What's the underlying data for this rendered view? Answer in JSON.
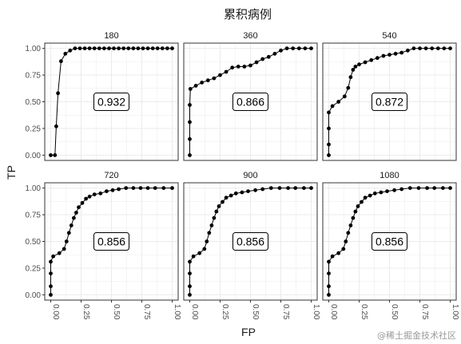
{
  "chart_data": {
    "type": "line",
    "title": "累积病例",
    "xlabel": "FP",
    "ylabel": "TP",
    "xlim": [
      0,
      1
    ],
    "ylim": [
      0,
      1
    ],
    "x_ticks": [
      "0.00",
      "0.25",
      "0.50",
      "0.75",
      "1.00"
    ],
    "y_ticks": [
      "0.00",
      "0.25",
      "0.50",
      "0.75",
      "1.00"
    ],
    "grid": true,
    "facets": [
      {
        "label": "180",
        "auc_label": "0.932",
        "x": [
          0,
          0.035,
          0.045,
          0.06,
          0.085,
          0.12,
          0.16,
          0.2,
          0.24,
          0.28,
          0.32,
          0.36,
          0.4,
          0.44,
          0.48,
          0.52,
          0.56,
          0.6,
          0.64,
          0.68,
          0.72,
          0.76,
          0.8,
          0.84,
          0.88,
          0.92,
          0.96,
          1.0
        ],
        "y": [
          0,
          0,
          0.27,
          0.58,
          0.88,
          0.95,
          0.98,
          1,
          1,
          1,
          1,
          1,
          1,
          1,
          1,
          1,
          1,
          1,
          1,
          1,
          1,
          1,
          1,
          1,
          1,
          1,
          1,
          1
        ]
      },
      {
        "label": "360",
        "auc_label": "0.866",
        "x": [
          0,
          0,
          0,
          0,
          0.005,
          0.05,
          0.1,
          0.15,
          0.2,
          0.25,
          0.3,
          0.35,
          0.4,
          0.45,
          0.5,
          0.55,
          0.6,
          0.65,
          0.7,
          0.75,
          0.8,
          0.85,
          0.9,
          0.95,
          1.0
        ],
        "y": [
          0,
          0.15,
          0.31,
          0.47,
          0.62,
          0.65,
          0.68,
          0.7,
          0.72,
          0.75,
          0.78,
          0.82,
          0.83,
          0.83,
          0.84,
          0.87,
          0.9,
          0.92,
          0.95,
          0.98,
          1,
          1,
          1,
          1,
          1
        ]
      },
      {
        "label": "540",
        "auc_label": "0.872",
        "x": [
          0,
          0,
          0,
          0,
          0.03,
          0.08,
          0.13,
          0.16,
          0.18,
          0.2,
          0.22,
          0.25,
          0.3,
          0.35,
          0.4,
          0.45,
          0.5,
          0.55,
          0.6,
          0.65,
          0.7,
          0.75,
          0.8,
          0.85,
          0.9,
          0.95,
          1.0
        ],
        "y": [
          0,
          0.1,
          0.25,
          0.4,
          0.46,
          0.5,
          0.55,
          0.63,
          0.73,
          0.8,
          0.83,
          0.85,
          0.87,
          0.89,
          0.91,
          0.93,
          0.94,
          0.95,
          0.96,
          0.98,
          1,
          1,
          1,
          1,
          1,
          1,
          1
        ]
      },
      {
        "label": "720",
        "auc_label": "0.856",
        "x": [
          0,
          0,
          0,
          0,
          0.02,
          0.07,
          0.11,
          0.13,
          0.15,
          0.17,
          0.19,
          0.21,
          0.23,
          0.26,
          0.29,
          0.32,
          0.36,
          0.41,
          0.46,
          0.51,
          0.56,
          0.62,
          0.68,
          0.74,
          0.8,
          0.86,
          0.93,
          1.0
        ],
        "y": [
          0,
          0.08,
          0.2,
          0.31,
          0.36,
          0.39,
          0.43,
          0.5,
          0.58,
          0.65,
          0.72,
          0.77,
          0.82,
          0.86,
          0.9,
          0.92,
          0.94,
          0.95,
          0.97,
          0.98,
          0.99,
          1,
          1,
          1,
          1,
          1,
          1,
          1
        ]
      },
      {
        "label": "900",
        "auc_label": "0.856",
        "x": [
          0,
          0,
          0,
          0,
          0.03,
          0.08,
          0.12,
          0.14,
          0.16,
          0.18,
          0.2,
          0.22,
          0.24,
          0.27,
          0.3,
          0.34,
          0.38,
          0.43,
          0.48,
          0.54,
          0.6,
          0.67,
          0.74,
          0.81,
          0.87,
          0.94,
          1.0
        ],
        "y": [
          0,
          0.08,
          0.2,
          0.31,
          0.36,
          0.39,
          0.43,
          0.5,
          0.58,
          0.65,
          0.72,
          0.78,
          0.83,
          0.87,
          0.91,
          0.93,
          0.95,
          0.96,
          0.97,
          0.98,
          0.99,
          1,
          1,
          1,
          1,
          1,
          1
        ]
      },
      {
        "label": "1080",
        "auc_label": "0.856",
        "x": [
          0,
          0,
          0,
          0,
          0.03,
          0.08,
          0.12,
          0.14,
          0.16,
          0.18,
          0.2,
          0.22,
          0.24,
          0.27,
          0.3,
          0.34,
          0.38,
          0.43,
          0.48,
          0.54,
          0.6,
          0.67,
          0.74,
          0.81,
          0.87,
          0.94,
          1.0
        ],
        "y": [
          0,
          0.08,
          0.2,
          0.31,
          0.36,
          0.39,
          0.43,
          0.5,
          0.58,
          0.65,
          0.72,
          0.78,
          0.83,
          0.87,
          0.91,
          0.93,
          0.95,
          0.96,
          0.97,
          0.98,
          0.99,
          1,
          1,
          1,
          1,
          1,
          1
        ]
      }
    ]
  },
  "watermark": "@稀土掘金技术社区",
  "colors": {
    "line": "#000000",
    "grid": "#ebebeb",
    "strip_bg": "#ffffff",
    "panel_border": "#333333"
  }
}
